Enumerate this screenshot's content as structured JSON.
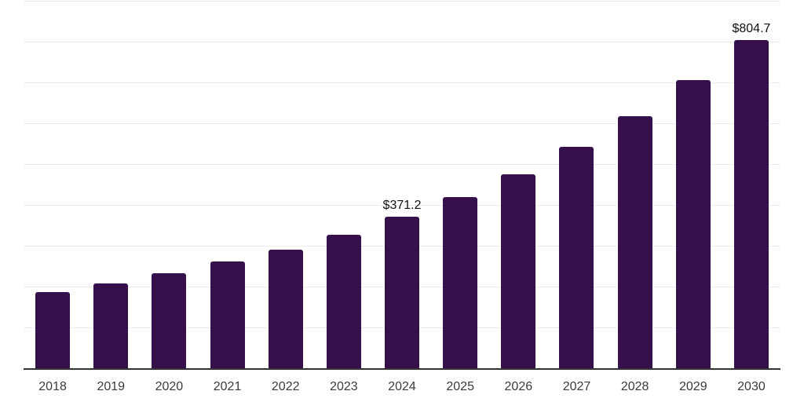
{
  "chart_data": {
    "type": "bar",
    "title": "",
    "xlabel": "",
    "ylabel": "",
    "categories": [
      "2018",
      "2019",
      "2020",
      "2021",
      "2022",
      "2023",
      "2024",
      "2025",
      "2026",
      "2027",
      "2028",
      "2029",
      "2030"
    ],
    "values": [
      186.0,
      207.9,
      232.9,
      261.4,
      290.4,
      326.9,
      371.2,
      419.2,
      475.0,
      542.3,
      617.3,
      705.8,
      804.7
    ],
    "value_labels": {
      "2024": "$371.2",
      "2030": "$804.7"
    },
    "ylim": [
      0,
      900
    ],
    "gridline_step": 100,
    "grid": "horizontal",
    "legend_position": "none",
    "colors": {
      "bar": "#35104B",
      "gridline": "#ebebeb",
      "axis_line": "#333333",
      "value_label": "#111111",
      "tick_label": "#3a3a3a",
      "background": "#ffffff"
    }
  }
}
